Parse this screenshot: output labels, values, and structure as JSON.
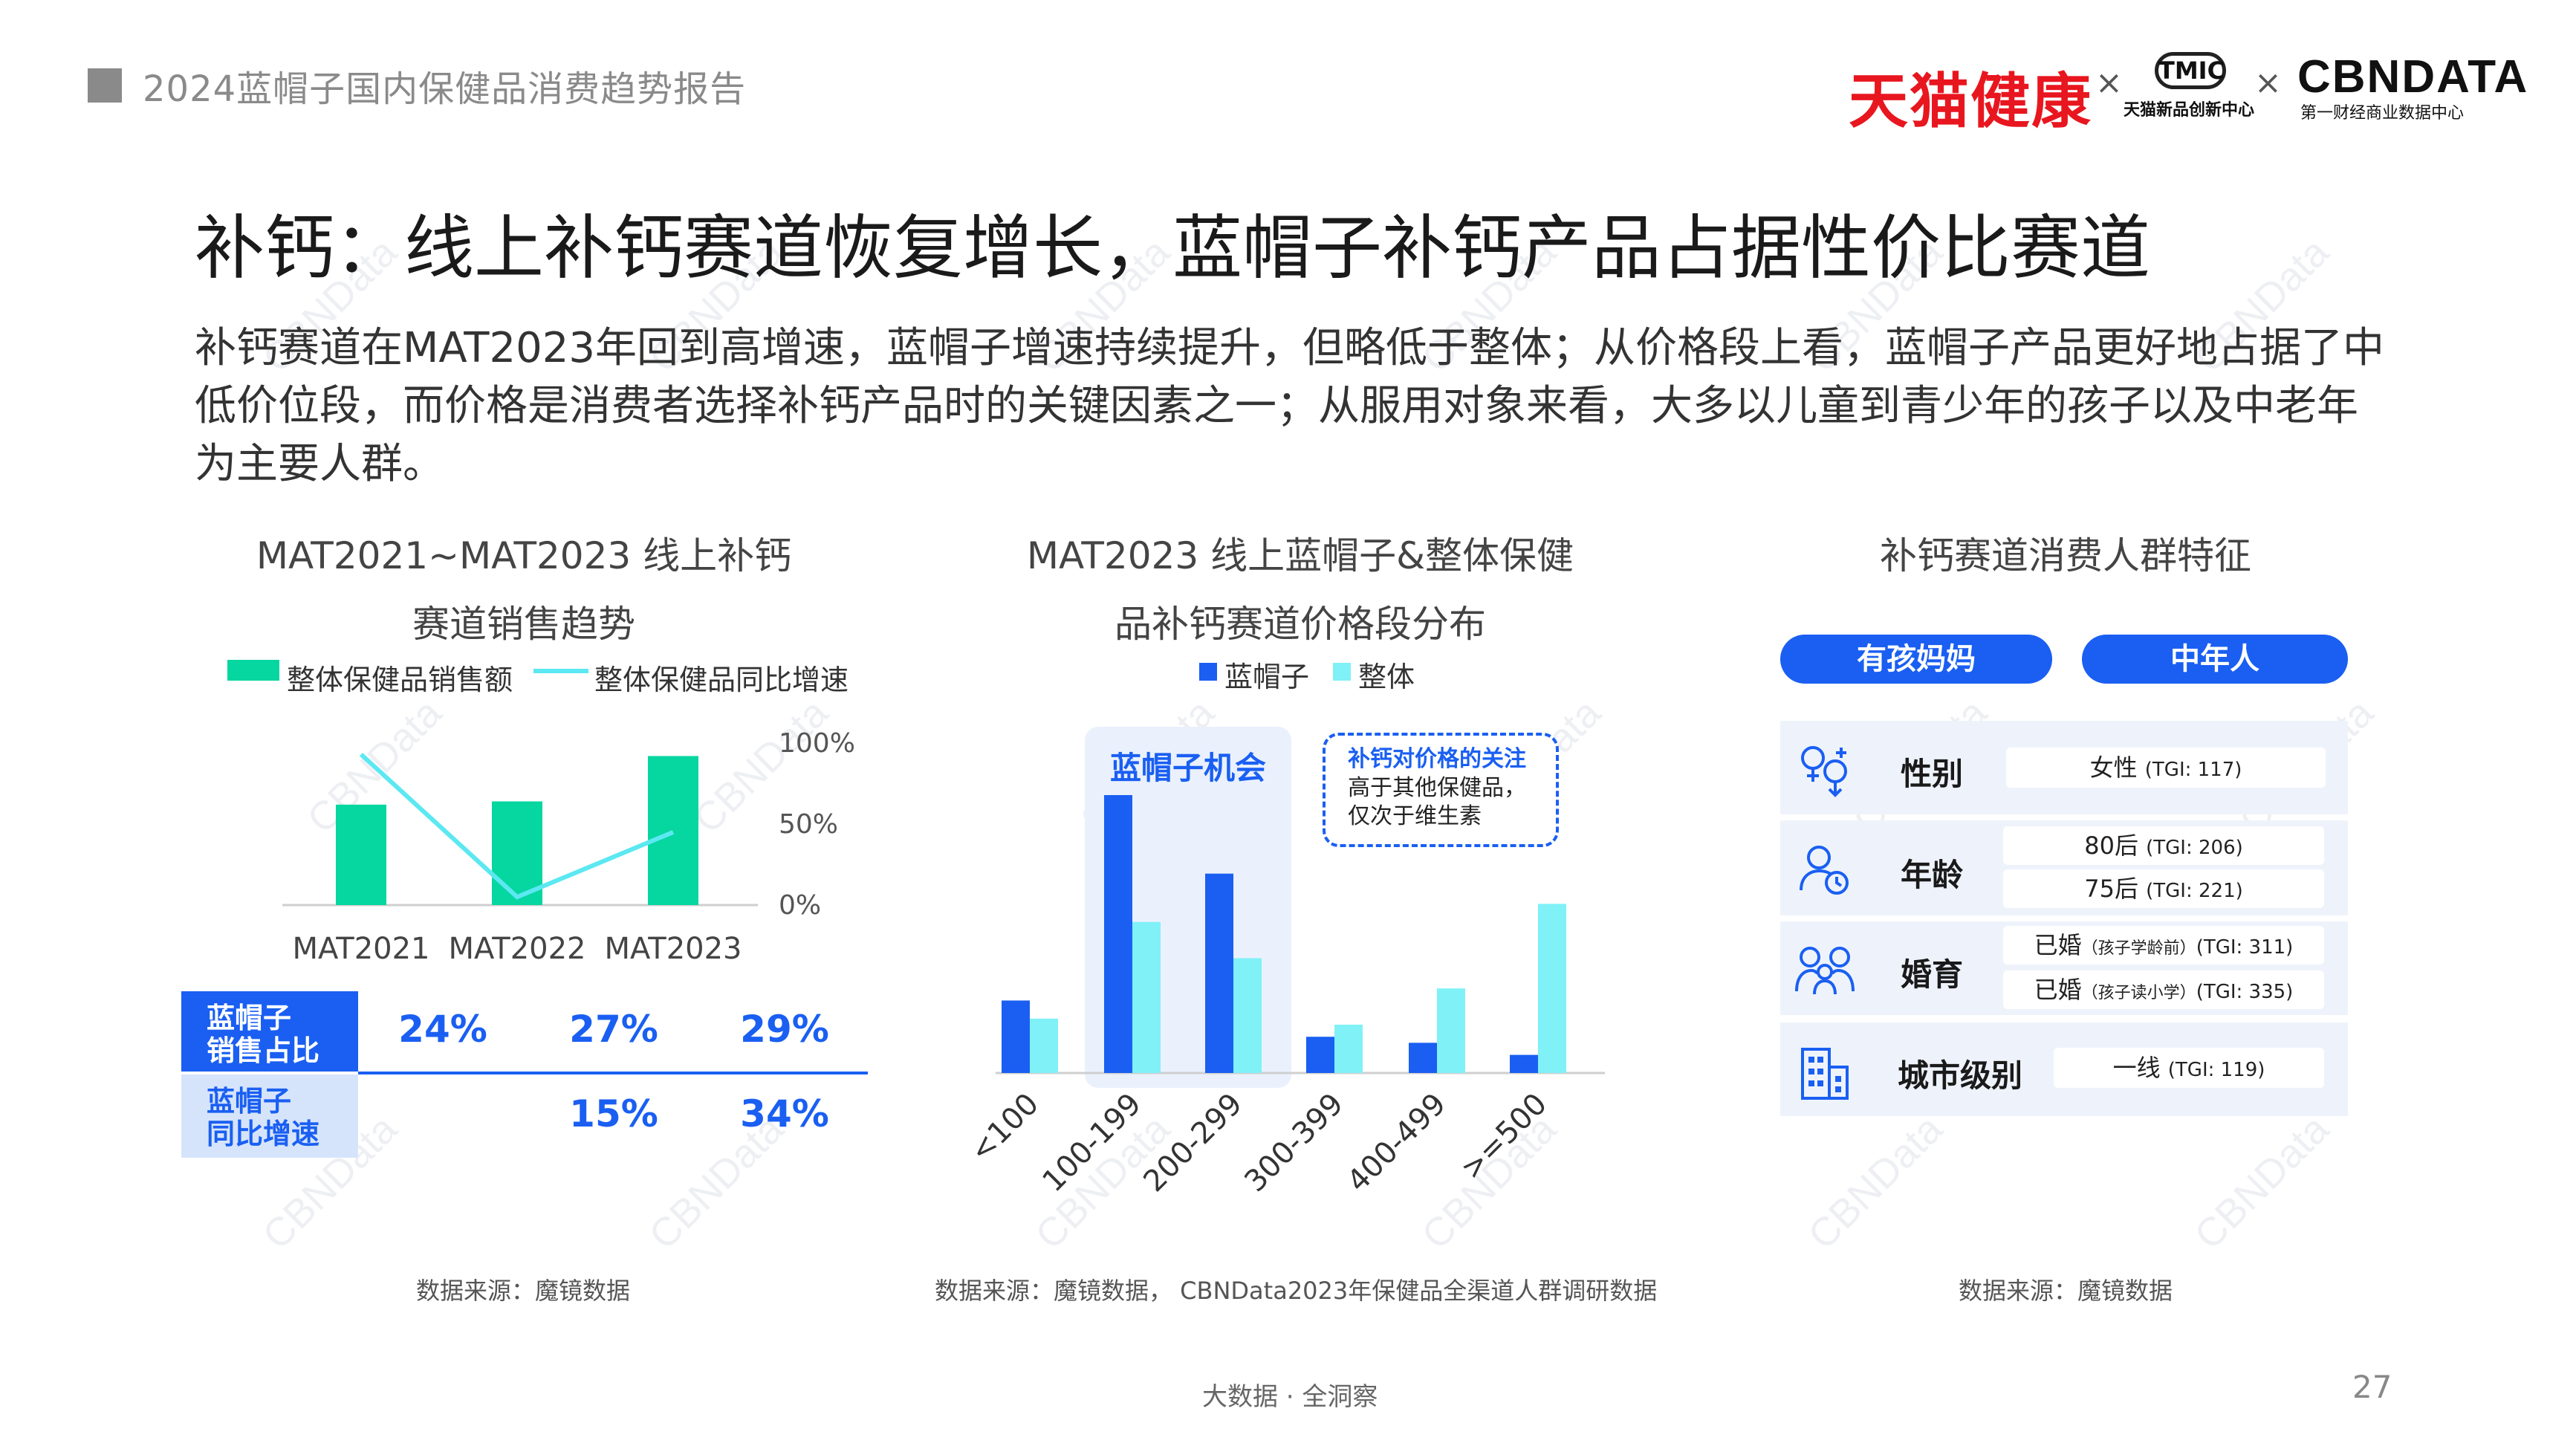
{
  "header": {
    "report_title": "2024蓝帽子国内保健品消费趋势报告",
    "logos": {
      "tmall": "天猫健康",
      "tmic": "TMIC",
      "tmic_sub": "天猫新品创新中心",
      "cbn": "CBNDATA",
      "cbn_sub": "第一财经商业数据中心",
      "separator": "×"
    }
  },
  "watermark": "CBNData",
  "title": "补钙：线上补钙赛道恢复增长，蓝帽子补钙产品占据性价比赛道",
  "intro": "补钙赛道在MAT2023年回到高增速，蓝帽子增速持续提升，但略低于整体；从价格段上看，蓝帽子产品更好地占据了中低价位段，而价格是消费者选择补钙产品时的关键因素之一；从服用对象来看，大多以儿童到青少年的孩子以及中老年为主要人群。",
  "colors": {
    "brand_blue": "#1a5ff2",
    "teal_bar": "#06d6a0",
    "cyan_line": "#5ce8f2",
    "light_cyan": "#7ff1f7",
    "table_light": "#d6e4fb",
    "panel_bg": "#eef3fb"
  },
  "chart_data": [
    {
      "type": "bar",
      "title_line1": "MAT2021~MAT2023 线上补钙",
      "title_line2": "赛道销售趋势",
      "categories": [
        "MAT2021",
        "MAT2022",
        "MAT2023"
      ],
      "series": [
        {
          "name": "整体保健品销售额",
          "kind": "bar",
          "values": [
            62,
            64,
            92
          ],
          "color": "#06d6a0"
        },
        {
          "name": "整体保健品同比增速",
          "kind": "line",
          "values": [
            93,
            5,
            45
          ],
          "color": "#5ce8f2"
        }
      ],
      "y2_ticks": [
        "100%",
        "50%",
        "0%"
      ],
      "table": {
        "rows": [
          {
            "label": "蓝帽子\n销售占比",
            "values": [
              "24%",
              "27%",
              "29%"
            ]
          },
          {
            "label": "蓝帽子\n同比增速",
            "values": [
              "",
              "15%",
              "34%"
            ]
          }
        ]
      },
      "source": "数据来源：魔镜数据"
    },
    {
      "type": "bar",
      "title_line1": "MAT2023 线上蓝帽子&整体保健",
      "title_line2": "品补钙赛道价格段分布",
      "categories": [
        "<100",
        "100-199",
        "200-299",
        "300-399",
        "400-499",
        ">=500"
      ],
      "series": [
        {
          "name": "蓝帽子",
          "values": [
            12,
            46,
            33,
            6,
            5,
            3
          ],
          "color": "#1a5ff2"
        },
        {
          "name": "整体",
          "values": [
            9,
            25,
            19,
            8,
            14,
            28
          ],
          "color": "#7ff1f7"
        }
      ],
      "highlight_label": "蓝帽子机会",
      "callout": {
        "title": "补钙对价格的关注",
        "line1": "高于其他保健品，",
        "line2": "仅次于维生素"
      },
      "source": "数据来源：魔镜数据， CBNData2023年保健品全渠道人群调研数据"
    }
  ],
  "persona": {
    "title": "补钙赛道消费人群特征",
    "tags": [
      "有孩妈妈",
      "中年人"
    ],
    "rows": [
      {
        "icon": "gender-icon",
        "label": "性别",
        "values": [
          {
            "main": "女性",
            "tgi": "(TGI: 117)"
          }
        ]
      },
      {
        "icon": "age-icon",
        "label": "年龄",
        "values": [
          {
            "main": "80后",
            "tgi": "(TGI: 206)"
          },
          {
            "main": "75后",
            "tgi": "(TGI: 221)"
          }
        ]
      },
      {
        "icon": "family-icon",
        "label": "婚育",
        "values": [
          {
            "main": "已婚",
            "note": "（孩子学龄前）",
            "tgi": "(TGI: 311)"
          },
          {
            "main": "已婚",
            "note": "（孩子读小学）",
            "tgi": "(TGI: 335)"
          }
        ]
      },
      {
        "icon": "city-icon",
        "label": "城市级别",
        "values": [
          {
            "main": "一线",
            "tgi": "(TGI: 119)"
          }
        ]
      }
    ],
    "source": "数据来源：魔镜数据"
  },
  "footer": {
    "tagline": "大数据 · 全洞察",
    "page_number": "27"
  }
}
